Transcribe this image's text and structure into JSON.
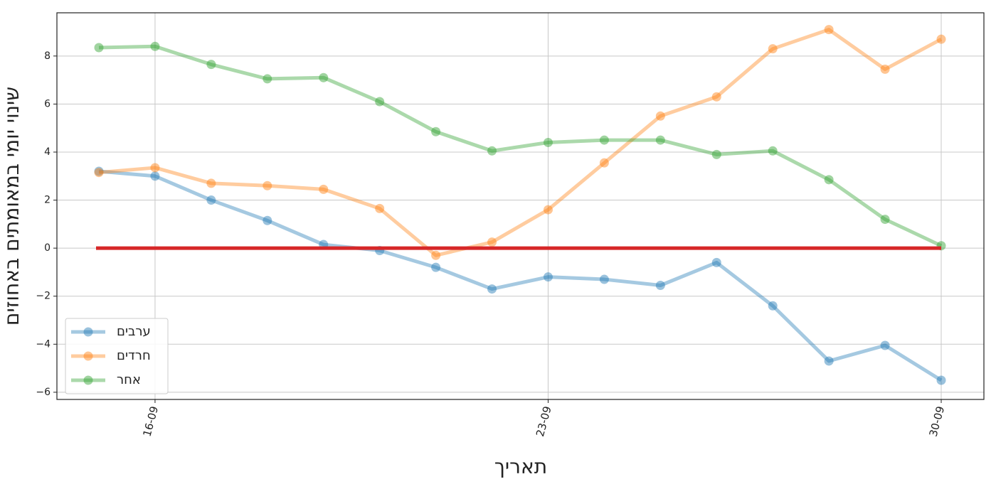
{
  "chart_data": {
    "type": "line",
    "x_label": "תאריך",
    "y_label": "שינוי יומי במאומתים באחוזים",
    "categories": [
      null,
      "16-09",
      null,
      null,
      null,
      null,
      null,
      null,
      "23-09",
      null,
      null,
      null,
      null,
      null,
      null,
      "30-09"
    ],
    "series": [
      {
        "name": "ערבים",
        "color": "#1f77b4",
        "values": [
          3.2,
          3.0,
          2.0,
          1.15,
          0.15,
          -0.1,
          -0.8,
          -1.7,
          -1.2,
          -1.3,
          -1.55,
          -0.6,
          -2.4,
          -4.7,
          -4.05,
          -5.5
        ]
      },
      {
        "name": "חרדים",
        "color": "#ff7f0e",
        "values": [
          3.15,
          3.35,
          2.7,
          2.6,
          2.45,
          1.65,
          -0.3,
          0.25,
          1.6,
          3.55,
          5.5,
          6.3,
          8.3,
          9.1,
          7.45,
          8.7
        ]
      },
      {
        "name": "אחר",
        "color": "#2ca02c",
        "values": [
          8.35,
          8.4,
          7.65,
          7.05,
          7.1,
          6.1,
          4.85,
          4.05,
          4.4,
          4.5,
          4.5,
          3.9,
          4.05,
          2.85,
          1.2,
          0.1
        ]
      }
    ],
    "hline": {
      "y": 0,
      "color": "#d62728"
    },
    "ylim": [
      -6.3,
      9.8
    ],
    "yticks": [
      {
        "value": -6,
        "label": "−6"
      },
      {
        "value": -4,
        "label": "−4"
      },
      {
        "value": -2,
        "label": "−2"
      },
      0,
      2,
      4,
      6,
      8
    ],
    "grid": true,
    "legend": "lower left"
  }
}
